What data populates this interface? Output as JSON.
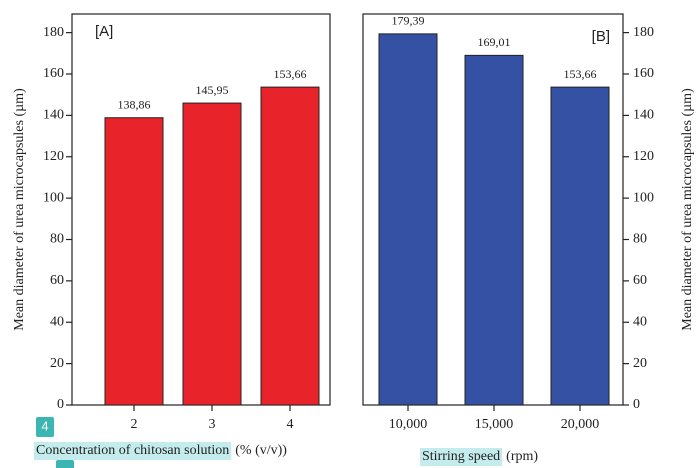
{
  "chart_data": [
    {
      "type": "bar",
      "panel_label": "[A]",
      "categories": [
        "2",
        "3",
        "4"
      ],
      "values": [
        138.86,
        145.95,
        153.66
      ],
      "value_labels": [
        "138,86",
        "145,95",
        "153,66"
      ],
      "color": "#e8242a",
      "ylim": [
        0,
        189
      ],
      "yticks": [
        0,
        20,
        40,
        60,
        80,
        100,
        120,
        140,
        160,
        180
      ],
      "y_label": "Mean diameter of urea microcapsules (µm)",
      "x_label": "Concentration of chitosan solution",
      "x_label_unit": "(% (v/v))",
      "badge": "4",
      "y_axis_side": "left"
    },
    {
      "type": "bar",
      "panel_label": "[B]",
      "categories": [
        "10,000",
        "15,000",
        "20,000"
      ],
      "values": [
        179.39,
        169.01,
        153.66
      ],
      "value_labels": [
        "179,39",
        "169,01",
        "153,66"
      ],
      "color": "#3451a3",
      "ylim": [
        0,
        189
      ],
      "yticks": [
        0,
        20,
        40,
        60,
        80,
        100,
        120,
        140,
        160,
        180
      ],
      "y_label": "Mean diameter of urea microcapsules (µm)",
      "x_label": "Stirring speed",
      "x_label_unit": "(rpm)",
      "y_axis_side": "right"
    }
  ]
}
